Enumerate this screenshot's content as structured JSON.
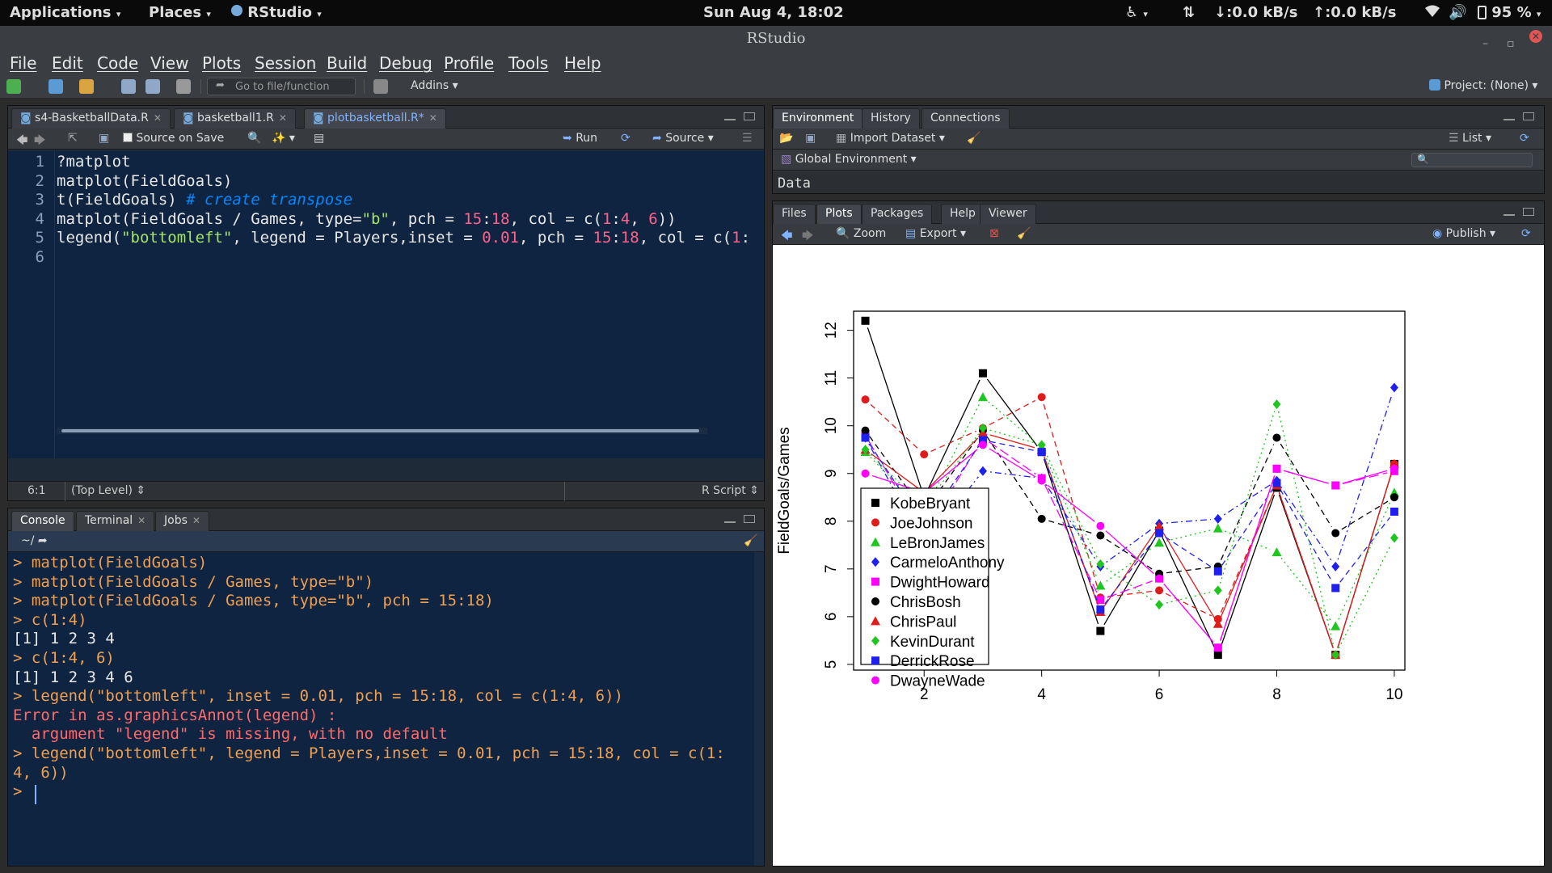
{
  "topbar": {
    "applications": "Applications",
    "places": "Places",
    "app_name": "RStudio",
    "datetime": "Sun Aug  4, 18:02",
    "down_speed": "↓:0.0 kB/s",
    "up_speed": "↑:0.0 kB/s",
    "battery": "95 %"
  },
  "window": {
    "title": "RStudio"
  },
  "menu": [
    "File",
    "Edit",
    "Code",
    "View",
    "Plots",
    "Session",
    "Build",
    "Debug",
    "Profile",
    "Tools",
    "Help"
  ],
  "toolbar": {
    "goto_placeholder": "Go to file/function",
    "addins": "Addins",
    "project": "Project: (None)"
  },
  "editor": {
    "tabs": [
      "s4-BasketballData.R",
      "basketball1.R",
      "plotbasketball.R*"
    ],
    "source_on_save": "Source on Save",
    "run": "Run",
    "source": "Source",
    "lines": [
      {
        "n": "1",
        "parts": [
          [
            "t",
            "?matplot"
          ]
        ]
      },
      {
        "n": "2",
        "parts": [
          [
            "t",
            "matplot(FieldGoals)"
          ]
        ]
      },
      {
        "n": "3",
        "parts": [
          [
            "t",
            "t(FieldGoals) "
          ],
          [
            "c",
            "# create transpose"
          ]
        ]
      },
      {
        "n": "4",
        "parts": [
          [
            "t",
            "matplot(FieldGoals / Games, type="
          ],
          [
            "s",
            "\"b\""
          ],
          [
            "t",
            ", pch = "
          ],
          [
            "n",
            "15"
          ],
          [
            "t",
            ":"
          ],
          [
            "n",
            "18"
          ],
          [
            "t",
            ", col = c("
          ],
          [
            "n",
            "1"
          ],
          [
            "t",
            ":"
          ],
          [
            "n",
            "4"
          ],
          [
            "t",
            ", "
          ],
          [
            "n",
            "6"
          ],
          [
            "t",
            "))"
          ]
        ]
      },
      {
        "n": "5",
        "parts": [
          [
            "t",
            "legend("
          ],
          [
            "s",
            "\"bottomleft\""
          ],
          [
            "t",
            ", legend = Players,inset = "
          ],
          [
            "n",
            "0.01"
          ],
          [
            "t",
            ", pch = "
          ],
          [
            "n",
            "15"
          ],
          [
            "t",
            ":"
          ],
          [
            "n",
            "18"
          ],
          [
            "t",
            ", col = c("
          ],
          [
            "n",
            "1"
          ],
          [
            "t",
            ":"
          ]
        ]
      },
      {
        "n": "6",
        "parts": []
      }
    ],
    "cursor_pos": "6:1",
    "scope": "(Top Level)",
    "file_type": "R Script"
  },
  "console": {
    "tabs": [
      "Console",
      "Terminal",
      "Jobs"
    ],
    "path": "~/",
    "lines": [
      {
        "k": "cmd",
        "t": "> matplot(FieldGoals)"
      },
      {
        "k": "cmd",
        "t": "> matplot(FieldGoals / Games, type=\"b\")"
      },
      {
        "k": "cmd",
        "t": "> matplot(FieldGoals / Games, type=\"b\", pch = 15:18)"
      },
      {
        "k": "cmd",
        "t": "> c(1:4)"
      },
      {
        "k": "out",
        "t": "[1] 1 2 3 4"
      },
      {
        "k": "cmd",
        "t": "> c(1:4, 6)"
      },
      {
        "k": "out",
        "t": "[1] 1 2 3 4 6"
      },
      {
        "k": "cmd",
        "t": "> legend(\"bottomleft\", inset = 0.01, pch = 15:18, col = c(1:4, 6))"
      },
      {
        "k": "err",
        "t": "Error in as.graphicsAnnot(legend) :"
      },
      {
        "k": "err",
        "t": "  argument \"legend\" is missing, with no default"
      },
      {
        "k": "cmd",
        "t": "> legend(\"bottomleft\", legend = Players,inset = 0.01, pch = 15:18, col = c(1:"
      },
      {
        "k": "cmd",
        "t": "4, 6))"
      },
      {
        "k": "cmd",
        "t": "> "
      }
    ]
  },
  "env": {
    "tabs": [
      "Environment",
      "History",
      "Connections"
    ],
    "import_dataset": "Import Dataset",
    "list": "List",
    "scope": "Global Environment",
    "data_header": "Data"
  },
  "plots_pane": {
    "tabs": [
      "Files",
      "Plots",
      "Packages",
      "Help",
      "Viewer"
    ],
    "zoom": "Zoom",
    "export": "Export",
    "publish": "Publish"
  },
  "chart_data": {
    "type": "line",
    "ylabel": "FieldGoals/Games",
    "xlabel": "",
    "xlim": [
      1,
      10
    ],
    "ylim": [
      5,
      12.2
    ],
    "x_ticks": [
      "2",
      "4",
      "6",
      "8",
      "10"
    ],
    "y_ticks": [
      "5",
      "6",
      "7",
      "8",
      "9",
      "10",
      "11",
      "12"
    ],
    "legend_position": "bottomleft",
    "x": [
      1,
      2,
      3,
      4,
      5,
      6,
      7,
      8,
      9,
      10
    ],
    "series": [
      {
        "name": "KobeBryant",
        "color": "#000000",
        "pch": "square",
        "lty": "solid",
        "values": [
          12.2,
          8.5,
          11.1,
          9.45,
          5.7,
          7.8,
          5.2,
          8.7,
          5.2,
          9.2
        ]
      },
      {
        "name": "JoeJohnson",
        "color": "#df1c1c",
        "pch": "circle",
        "lty": "dashed",
        "values": [
          10.55,
          9.4,
          9.95,
          10.6,
          6.4,
          6.55,
          5.95,
          8.75,
          5.2,
          9.2
        ]
      },
      {
        "name": "LeBronJames",
        "color": "#1fc61f",
        "pch": "triangle",
        "lty": "dotted",
        "values": [
          9.45,
          8.2,
          10.6,
          9.55,
          6.65,
          7.55,
          7.85,
          7.35,
          5.8,
          8.6
        ]
      },
      {
        "name": "CarmeloAnthony",
        "color": "#2020ee",
        "pch": "diamond",
        "lty": "dotdash",
        "values": [
          9.75,
          7.5,
          9.05,
          8.9,
          7.05,
          7.95,
          8.05,
          8.85,
          7.05,
          10.8
        ]
      },
      {
        "name": "DwightHoward",
        "color": "#ff00ff",
        "pch": "square",
        "lty": "longdash",
        "values": [
          9.8,
          7.7,
          9.75,
          8.9,
          6.35,
          6.8,
          5.35,
          9.1,
          8.75,
          9.05
        ]
      },
      {
        "name": "ChrisBosh",
        "color": "#000000",
        "pch": "circle",
        "lty": "dashed",
        "values": [
          9.9,
          8.2,
          9.9,
          8.05,
          7.7,
          6.9,
          7.05,
          9.75,
          7.75,
          8.5
        ]
      },
      {
        "name": "ChrisPaul",
        "color": "#df1c1c",
        "pch": "triangle",
        "lty": "solid",
        "values": [
          9.5,
          8.6,
          9.85,
          9.5,
          6.1,
          7.9,
          5.85,
          8.75,
          5.2,
          9.2
        ]
      },
      {
        "name": "KevinDurant",
        "color": "#1fc61f",
        "pch": "diamond",
        "lty": "dotted",
        "values": [
          9.5,
          8.3,
          9.95,
          9.6,
          7.1,
          6.25,
          6.55,
          10.45,
          5.2,
          7.65
        ]
      },
      {
        "name": "DerrickRose",
        "color": "#2020ee",
        "pch": "square",
        "lty": "dashed",
        "values": [
          9.75,
          7.9,
          9.7,
          9.45,
          6.15,
          7.75,
          6.95,
          8.8,
          6.6,
          8.2
        ]
      },
      {
        "name": "DwayneWade",
        "color": "#ff00ff",
        "pch": "circle",
        "lty": "solid",
        "values": [
          9.0,
          8.6,
          9.6,
          8.85,
          7.9,
          6.8,
          5.35,
          9.1,
          8.75,
          9.1
        ]
      }
    ]
  }
}
